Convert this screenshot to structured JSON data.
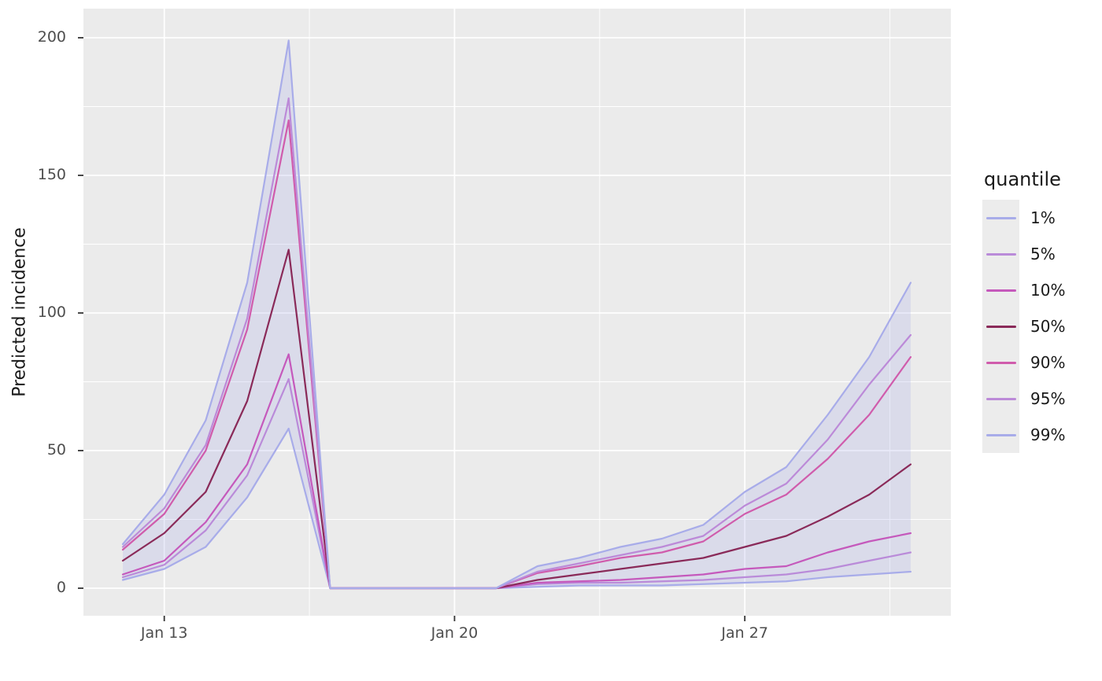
{
  "chart_data": {
    "type": "line",
    "title": "",
    "xlabel": "",
    "ylabel": "Predicted incidence",
    "legend_title": "quantile",
    "legend_position": "right",
    "grid": "on",
    "x_dates": [
      "Jan 12",
      "Jan 13",
      "Jan 14",
      "Jan 15",
      "Jan 16",
      "Jan 17",
      "Jan 18",
      "Jan 19",
      "Jan 20",
      "Jan 21",
      "Jan 22",
      "Jan 23",
      "Jan 24",
      "Jan 25",
      "Jan 26",
      "Jan 27",
      "Jan 28",
      "Jan 29",
      "Jan 30",
      "Jan 31"
    ],
    "x_tick_labels": [
      "Jan 13",
      "Jan 20",
      "Jan 27"
    ],
    "x_tick_indices": [
      1,
      8,
      15
    ],
    "x_minor_indices": [
      4.5,
      11.5,
      18.5
    ],
    "y_ticks": [
      0,
      50,
      100,
      150,
      200
    ],
    "y_minor_ticks": [
      25,
      75,
      125,
      175
    ],
    "ylim": [
      0,
      200
    ],
    "series": [
      {
        "name": "1%",
        "color": "#A8ACE9",
        "values": [
          3,
          7,
          15,
          33,
          58,
          0,
          0,
          0,
          0,
          0,
          0.5,
          1,
          1,
          1,
          1.5,
          2,
          2.5,
          4,
          5,
          6
        ]
      },
      {
        "name": "5%",
        "color": "#BA8BD9",
        "values": [
          4,
          8.5,
          21,
          41,
          76,
          0,
          0,
          0,
          0,
          0,
          1.5,
          2,
          2,
          2.5,
          3,
          4,
          5,
          7,
          10,
          13
        ]
      },
      {
        "name": "10%",
        "color": "#C559BC",
        "values": [
          5,
          10,
          24,
          45,
          85,
          0,
          0,
          0,
          0,
          0,
          2,
          2.5,
          3,
          4,
          5,
          7,
          8,
          13,
          17,
          20
        ]
      },
      {
        "name": "50%",
        "color": "#8A2A59",
        "values": [
          10,
          20,
          35,
          68,
          123,
          0,
          0,
          0,
          0,
          0,
          3,
          5,
          7,
          9,
          11,
          15,
          19,
          26,
          34,
          45
        ]
      },
      {
        "name": "90%",
        "color": "#D05CAC",
        "values": [
          14,
          27,
          50,
          94,
          170,
          0,
          0,
          0,
          0,
          0,
          5.5,
          8,
          11,
          13,
          17,
          27,
          34,
          47,
          63,
          84
        ]
      },
      {
        "name": "95%",
        "color": "#BC8AD8",
        "values": [
          15,
          29,
          52,
          98,
          178,
          0,
          0,
          0,
          0,
          0,
          6,
          9,
          12,
          15,
          19,
          30,
          38,
          54,
          74,
          92
        ]
      },
      {
        "name": "99%",
        "color": "#A8ACE9",
        "values": [
          16,
          34,
          61,
          111,
          199,
          0,
          0,
          0,
          0,
          0,
          8,
          11,
          15,
          18,
          23,
          35,
          44,
          63,
          84,
          111
        ]
      }
    ],
    "ribbon": {
      "lower": "1%",
      "upper": "99%",
      "fill": "#A8ACE9",
      "opacity": 0.25
    },
    "colors": {
      "panel_background": "#EBEBEB",
      "grid": "#FFFFFF",
      "axis_text": "#4D4D4D",
      "tick_marks": "#333333",
      "legend_key_background": "#ECECEC",
      "page_background": "#FFFFFF"
    }
  }
}
